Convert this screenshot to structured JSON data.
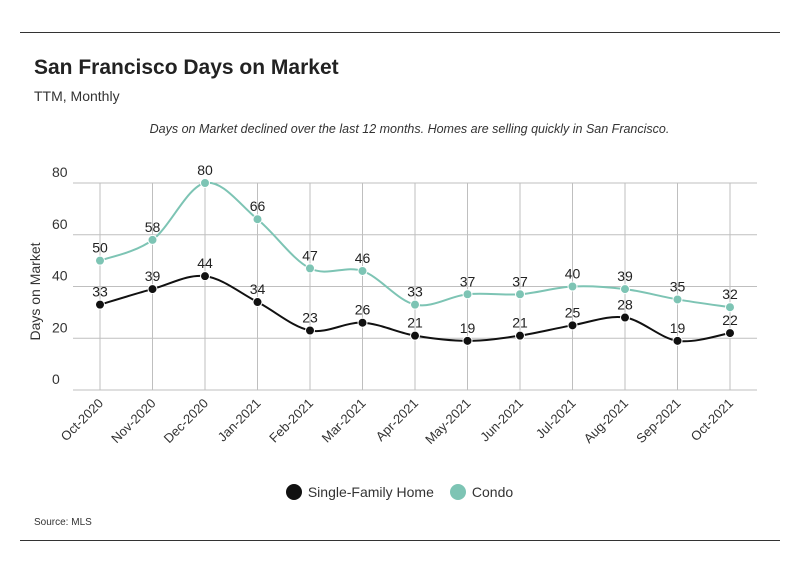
{
  "header": {
    "title": "San Francisco Days on Market",
    "subtitle": "TTM, Monthly",
    "note": "Days on Market declined over the last 12 months. Homes are selling quickly in San Francisco."
  },
  "footer": {
    "source": "Source:  MLS"
  },
  "colors": {
    "single_family": "#111111",
    "condo": "#7dc4b4",
    "grid": "#bfbfbf"
  },
  "chart_data": {
    "type": "line",
    "ylabel": "Days on Market",
    "xlabel": "",
    "ylim": [
      0,
      80
    ],
    "yticks": [
      0,
      20,
      40,
      60,
      80
    ],
    "grid": true,
    "legend_position": "bottom-center",
    "categories": [
      "Oct-2020",
      "Nov-2020",
      "Dec-2020",
      "Jan-2021",
      "Feb-2021",
      "Mar-2021",
      "Apr-2021",
      "May-2021",
      "Jun-2021",
      "Jul-2021",
      "Aug-2021",
      "Sep-2021",
      "Oct-2021"
    ],
    "series": [
      {
        "name": "Single-Family Home",
        "values": [
          33,
          39,
          44,
          34,
          23,
          26,
          21,
          19,
          21,
          25,
          28,
          19,
          22
        ]
      },
      {
        "name": "Condo",
        "values": [
          50,
          58,
          80,
          66,
          47,
          46,
          33,
          37,
          37,
          40,
          39,
          35,
          32
        ]
      }
    ]
  }
}
